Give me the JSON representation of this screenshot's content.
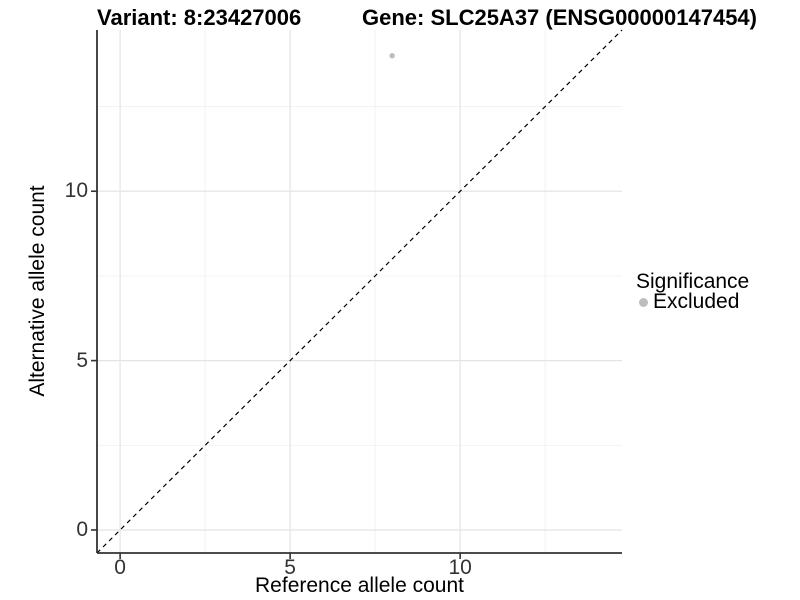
{
  "chart_data": {
    "type": "scatter",
    "title_left": "Variant: 8:23427006",
    "title_right": "Gene: SLC25A37 (ENSG00000147454)",
    "xlabel": "Reference allele count",
    "ylabel": "Alternative allele count",
    "xlim": [
      -0.68,
      14.76
    ],
    "ylim": [
      -0.68,
      14.76
    ],
    "x_ticks": [
      0,
      5,
      10
    ],
    "y_ticks": [
      0,
      5,
      10
    ],
    "x_minor_ticks": [
      2.5,
      7.5,
      12.5
    ],
    "y_minor_ticks": [
      2.5,
      7.5,
      12.5
    ],
    "grid": true,
    "points": [
      {
        "x": 8,
        "y": 14,
        "series": "Excluded"
      }
    ],
    "reference_line": {
      "type": "identity",
      "style": "dashed",
      "color": "#000000"
    },
    "legend": {
      "title": "Significance",
      "position": "right",
      "items": [
        {
          "label": "Excluded",
          "color": "#bdbdbd"
        }
      ]
    },
    "colors": {
      "background": "#ffffff",
      "grid_major": "#e4e4e4",
      "grid_minor": "#f1f1f1",
      "axis_line": "#333333",
      "tick_label": "#333333",
      "point": "#bdbdbd"
    }
  }
}
